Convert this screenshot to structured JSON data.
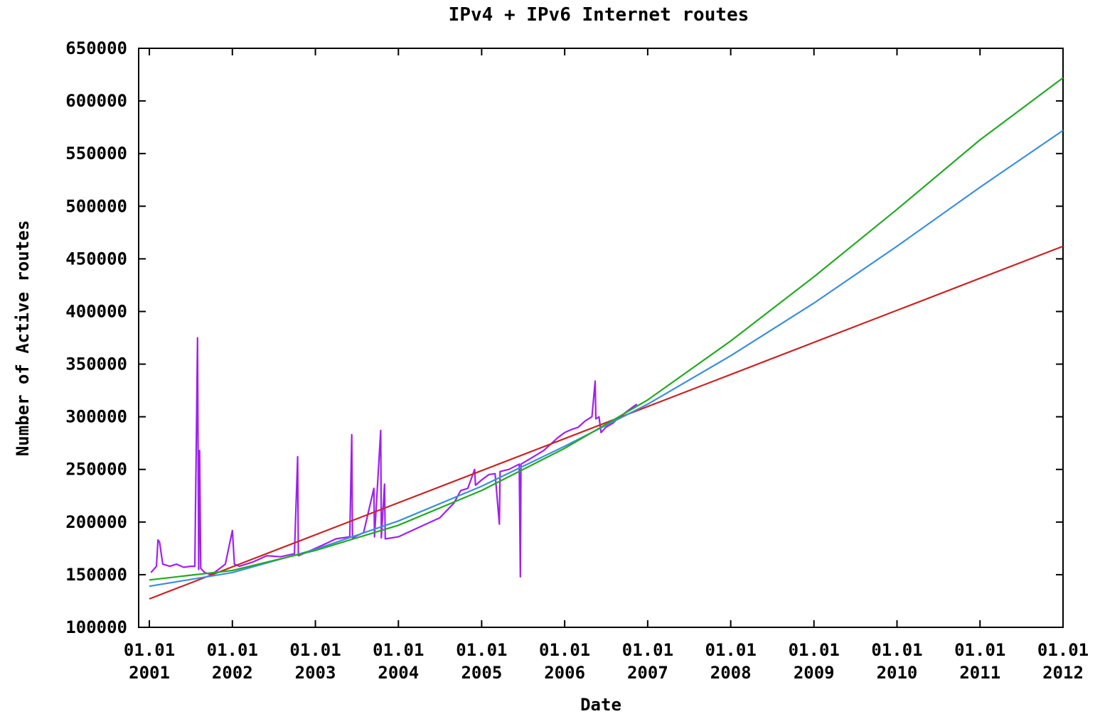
{
  "chart_data": {
    "type": "line",
    "title": "IPv4 + IPv6 Internet routes",
    "xlabel": "Date",
    "ylabel": "Number of Active routes",
    "xlim": [
      "2000-11-15",
      "2012-01-01"
    ],
    "ylim": [
      100000,
      650000
    ],
    "grid": false,
    "x_ticks": [
      {
        "date": "2001-01-01",
        "line1": "01.01",
        "line2": "2001"
      },
      {
        "date": "2002-01-01",
        "line1": "01.01",
        "line2": "2002"
      },
      {
        "date": "2003-01-01",
        "line1": "01.01",
        "line2": "2003"
      },
      {
        "date": "2004-01-01",
        "line1": "01.01",
        "line2": "2004"
      },
      {
        "date": "2005-01-01",
        "line1": "01.01",
        "line2": "2005"
      },
      {
        "date": "2006-01-01",
        "line1": "01.01",
        "line2": "2006"
      },
      {
        "date": "2007-01-01",
        "line1": "01.01",
        "line2": "2007"
      },
      {
        "date": "2008-01-01",
        "line1": "01.01",
        "line2": "2008"
      },
      {
        "date": "2009-01-01",
        "line1": "01.01",
        "line2": "2009"
      },
      {
        "date": "2010-01-01",
        "line1": "01.01",
        "line2": "2010"
      },
      {
        "date": "2011-01-01",
        "line1": "01.01",
        "line2": "2011"
      },
      {
        "date": "2012-01-01",
        "line1": "01.01",
        "line2": "2012"
      }
    ],
    "y_ticks": [
      "100000",
      "150000",
      "200000",
      "250000",
      "300000",
      "350000",
      "400000",
      "450000",
      "500000",
      "550000",
      "600000",
      "650000"
    ],
    "series": [
      {
        "color": "#a020f0",
        "points": [
          [
            "2001-01-08",
            152000
          ],
          [
            "2001-02-01",
            158000
          ],
          [
            "2001-02-08",
            183000
          ],
          [
            "2001-02-15",
            181000
          ],
          [
            "2001-03-01",
            160000
          ],
          [
            "2001-04-01",
            158000
          ],
          [
            "2001-05-01",
            160000
          ],
          [
            "2001-06-01",
            157000
          ],
          [
            "2001-07-01",
            158000
          ],
          [
            "2001-07-20",
            158000
          ],
          [
            "2001-08-01",
            375000
          ],
          [
            "2001-08-06",
            155000
          ],
          [
            "2001-08-10",
            268000
          ],
          [
            "2001-08-15",
            156000
          ],
          [
            "2001-09-01",
            152000
          ],
          [
            "2001-10-01",
            150000
          ],
          [
            "2001-11-01",
            155000
          ],
          [
            "2001-12-01",
            160000
          ],
          [
            "2002-01-01",
            192000
          ],
          [
            "2002-01-10",
            160000
          ],
          [
            "2002-02-01",
            158000
          ],
          [
            "2002-04-01",
            162000
          ],
          [
            "2002-06-01",
            168000
          ],
          [
            "2002-08-01",
            167000
          ],
          [
            "2002-10-01",
            170000
          ],
          [
            "2002-10-15",
            262000
          ],
          [
            "2002-10-18",
            168000
          ],
          [
            "2002-12-01",
            172000
          ],
          [
            "2003-02-01",
            178000
          ],
          [
            "2003-04-01",
            184000
          ],
          [
            "2003-06-01",
            186000
          ],
          [
            "2003-06-10",
            283000
          ],
          [
            "2003-06-13",
            185000
          ],
          [
            "2003-08-01",
            190000
          ],
          [
            "2003-09-15",
            232000
          ],
          [
            "2003-09-18",
            186000
          ],
          [
            "2003-10-15",
            287000
          ],
          [
            "2003-10-18",
            185000
          ],
          [
            "2003-11-01",
            236000
          ],
          [
            "2003-11-04",
            184000
          ],
          [
            "2004-01-01",
            186000
          ],
          [
            "2004-03-01",
            192000
          ],
          [
            "2004-05-01",
            198000
          ],
          [
            "2004-07-01",
            204000
          ],
          [
            "2004-09-01",
            218000
          ],
          [
            "2004-10-01",
            230000
          ],
          [
            "2004-11-01",
            232000
          ],
          [
            "2004-12-01",
            250000
          ],
          [
            "2004-12-05",
            235000
          ],
          [
            "2005-01-01",
            240000
          ],
          [
            "2005-02-01",
            245000
          ],
          [
            "2005-03-01",
            246000
          ],
          [
            "2005-03-20",
            198000
          ],
          [
            "2005-03-23",
            248000
          ],
          [
            "2005-05-01",
            250000
          ],
          [
            "2005-06-15",
            255000
          ],
          [
            "2005-06-20",
            148000
          ],
          [
            "2005-06-23",
            255000
          ],
          [
            "2005-08-01",
            260000
          ],
          [
            "2005-10-01",
            268000
          ],
          [
            "2005-12-01",
            280000
          ],
          [
            "2006-01-01",
            285000
          ],
          [
            "2006-02-01",
            288000
          ],
          [
            "2006-03-01",
            290000
          ],
          [
            "2006-04-01",
            296000
          ],
          [
            "2006-05-01",
            300000
          ],
          [
            "2006-05-15",
            334000
          ],
          [
            "2006-05-18",
            298000
          ],
          [
            "2006-06-01",
            300000
          ],
          [
            "2006-06-10",
            285000
          ],
          [
            "2006-07-01",
            290000
          ],
          [
            "2006-08-01",
            294000
          ],
          [
            "2006-09-01",
            300000
          ],
          [
            "2006-10-01",
            305000
          ],
          [
            "2006-11-01",
            310000
          ],
          [
            "2006-11-15",
            312000
          ]
        ]
      },
      {
        "color": "#cc2222",
        "points": [
          [
            "2001-01-01",
            127000
          ],
          [
            "2012-01-01",
            462000
          ]
        ]
      },
      {
        "color": "#3a8fdd",
        "points": [
          [
            "2001-01-01",
            139000
          ],
          [
            "2002-01-01",
            152000
          ],
          [
            "2003-01-01",
            174000
          ],
          [
            "2004-01-01",
            201000
          ],
          [
            "2005-01-01",
            234000
          ],
          [
            "2006-01-01",
            272000
          ],
          [
            "2007-01-01",
            312000
          ],
          [
            "2008-01-01",
            358000
          ],
          [
            "2009-01-01",
            408000
          ],
          [
            "2010-01-01",
            462000
          ],
          [
            "2011-01-01",
            518000
          ],
          [
            "2012-01-01",
            572000
          ]
        ]
      },
      {
        "color": "#22aa22",
        "points": [
          [
            "2001-01-01",
            145000
          ],
          [
            "2002-01-01",
            154000
          ],
          [
            "2003-01-01",
            173000
          ],
          [
            "2004-01-01",
            197000
          ],
          [
            "2005-01-01",
            230000
          ],
          [
            "2006-01-01",
            270000
          ],
          [
            "2007-01-01",
            316000
          ],
          [
            "2008-01-01",
            372000
          ],
          [
            "2009-01-01",
            433000
          ],
          [
            "2010-01-01",
            497000
          ],
          [
            "2011-01-01",
            563000
          ],
          [
            "2012-01-01",
            622000
          ]
        ]
      }
    ]
  }
}
